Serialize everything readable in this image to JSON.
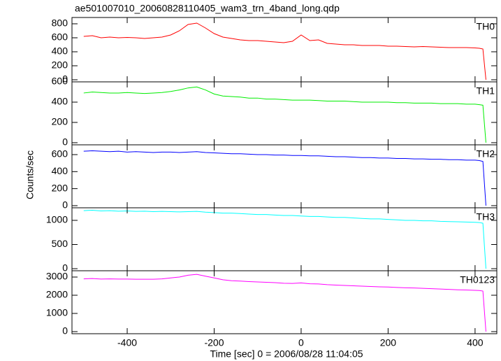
{
  "chart_data": [
    {
      "type": "line",
      "title": "ae501007010_20060828110405_wam3_trn_4band_long.qdp",
      "xlim": [
        -527,
        450
      ],
      "ylim": [
        -30,
        890
      ],
      "yticks": [
        0,
        200,
        400,
        600,
        800
      ],
      "x": [
        -500,
        -480,
        -460,
        -440,
        -420,
        -400,
        -380,
        -360,
        -340,
        -320,
        -300,
        -280,
        -260,
        -240,
        -220,
        -200,
        -180,
        -160,
        -140,
        -120,
        -100,
        -80,
        -60,
        -40,
        -20,
        0,
        20,
        40,
        60,
        80,
        100,
        120,
        140,
        160,
        180,
        200,
        220,
        240,
        260,
        280,
        300,
        320,
        340,
        360,
        380,
        400,
        410,
        418,
        425
      ],
      "series": [
        {
          "name": "TH0",
          "color": "#ff0000",
          "values": [
            620,
            630,
            600,
            610,
            600,
            605,
            600,
            590,
            600,
            610,
            640,
            700,
            790,
            810,
            740,
            660,
            610,
            590,
            570,
            560,
            560,
            550,
            540,
            530,
            550,
            640,
            560,
            570,
            520,
            510,
            500,
            500,
            490,
            490,
            490,
            480,
            480,
            475,
            470,
            475,
            470,
            465,
            460,
            460,
            460,
            455,
            450,
            440,
            0
          ]
        }
      ]
    },
    {
      "type": "line",
      "xlim": [
        -527,
        450
      ],
      "ylim": [
        -21,
        600
      ],
      "yticks": [
        0,
        200,
        400,
        600
      ],
      "x": [
        -500,
        -480,
        -460,
        -440,
        -420,
        -400,
        -380,
        -360,
        -340,
        -320,
        -300,
        -280,
        -260,
        -240,
        -220,
        -200,
        -180,
        -160,
        -140,
        -120,
        -100,
        -80,
        -60,
        -40,
        -20,
        0,
        20,
        40,
        60,
        80,
        100,
        120,
        140,
        160,
        180,
        200,
        220,
        240,
        260,
        280,
        300,
        320,
        340,
        360,
        380,
        400,
        410,
        418,
        425
      ],
      "series": [
        {
          "name": "TH1",
          "color": "#00ee00",
          "values": [
            490,
            500,
            495,
            490,
            490,
            495,
            490,
            485,
            490,
            495,
            505,
            520,
            540,
            550,
            520,
            480,
            460,
            455,
            450,
            440,
            440,
            430,
            430,
            425,
            420,
            420,
            420,
            415,
            410,
            410,
            410,
            405,
            400,
            400,
            400,
            400,
            395,
            395,
            390,
            390,
            390,
            385,
            385,
            385,
            380,
            380,
            375,
            370,
            0
          ]
        }
      ]
    },
    {
      "type": "line",
      "ylabel": "Counts/sec",
      "xlim": [
        -527,
        450
      ],
      "ylim": [
        -25,
        715
      ],
      "yticks": [
        0,
        200,
        400,
        600
      ],
      "x": [
        -500,
        -480,
        -460,
        -440,
        -420,
        -400,
        -380,
        -360,
        -340,
        -320,
        -300,
        -280,
        -260,
        -240,
        -220,
        -200,
        -180,
        -160,
        -140,
        -120,
        -100,
        -80,
        -60,
        -40,
        -20,
        0,
        20,
        40,
        60,
        80,
        100,
        120,
        140,
        160,
        180,
        200,
        220,
        240,
        260,
        280,
        300,
        320,
        340,
        360,
        380,
        400,
        410,
        418,
        425
      ],
      "series": [
        {
          "name": "TH2",
          "color": "#0000ff",
          "values": [
            640,
            645,
            640,
            635,
            640,
            630,
            635,
            630,
            625,
            630,
            630,
            625,
            630,
            635,
            625,
            620,
            615,
            610,
            610,
            605,
            600,
            600,
            595,
            595,
            590,
            590,
            585,
            585,
            580,
            575,
            575,
            570,
            565,
            565,
            560,
            560,
            555,
            555,
            550,
            550,
            545,
            545,
            540,
            540,
            535,
            535,
            530,
            520,
            0
          ]
        }
      ]
    },
    {
      "type": "line",
      "xlim": [
        -527,
        450
      ],
      "ylim": [
        -43,
        1260
      ],
      "yticks": [
        0,
        500,
        1000
      ],
      "x": [
        -500,
        -480,
        -460,
        -440,
        -420,
        -400,
        -380,
        -360,
        -340,
        -320,
        -300,
        -280,
        -260,
        -240,
        -220,
        -200,
        -180,
        -160,
        -140,
        -120,
        -100,
        -80,
        -60,
        -40,
        -20,
        0,
        20,
        40,
        60,
        80,
        100,
        120,
        140,
        160,
        180,
        200,
        220,
        240,
        260,
        280,
        300,
        320,
        340,
        360,
        380,
        400,
        410,
        418,
        425
      ],
      "series": [
        {
          "name": "TH3",
          "color": "#00ffff",
          "values": [
            1200,
            1210,
            1195,
            1200,
            1190,
            1195,
            1185,
            1190,
            1180,
            1185,
            1180,
            1175,
            1180,
            1185,
            1170,
            1160,
            1150,
            1150,
            1140,
            1130,
            1120,
            1120,
            1110,
            1100,
            1100,
            1090,
            1080,
            1080,
            1070,
            1060,
            1060,
            1050,
            1040,
            1030,
            1030,
            1020,
            1010,
            1000,
            1000,
            990,
            990,
            980,
            975,
            970,
            965,
            960,
            955,
            940,
            0
          ]
        }
      ]
    },
    {
      "type": "line",
      "xlabel": "Time [sec] 0 = 2006/08/28 11:04:05",
      "xlim": [
        -527,
        450
      ],
      "ylim": [
        -115,
        3346
      ],
      "yticks": [
        0,
        1000,
        2000,
        3000
      ],
      "xticks": [
        -400,
        -200,
        0,
        200,
        400
      ],
      "x": [
        -500,
        -480,
        -460,
        -440,
        -420,
        -400,
        -380,
        -360,
        -340,
        -320,
        -300,
        -280,
        -260,
        -240,
        -220,
        -200,
        -180,
        -160,
        -140,
        -120,
        -100,
        -80,
        -60,
        -40,
        -20,
        0,
        20,
        40,
        60,
        80,
        100,
        120,
        140,
        160,
        180,
        200,
        220,
        240,
        260,
        280,
        300,
        320,
        340,
        360,
        380,
        400,
        410,
        418,
        425
      ],
      "series": [
        {
          "name": "TH0123",
          "color": "#ff00ff",
          "values": [
            2900,
            2920,
            2890,
            2900,
            2890,
            2890,
            2880,
            2880,
            2880,
            2900,
            2950,
            3000,
            3100,
            3150,
            3050,
            2950,
            2850,
            2800,
            2780,
            2750,
            2730,
            2710,
            2690,
            2660,
            2650,
            2680,
            2630,
            2620,
            2580,
            2560,
            2540,
            2520,
            2500,
            2480,
            2460,
            2450,
            2430,
            2410,
            2400,
            2380,
            2360,
            2340,
            2320,
            2300,
            2290,
            2270,
            2260,
            2230,
            0
          ]
        }
      ]
    }
  ]
}
